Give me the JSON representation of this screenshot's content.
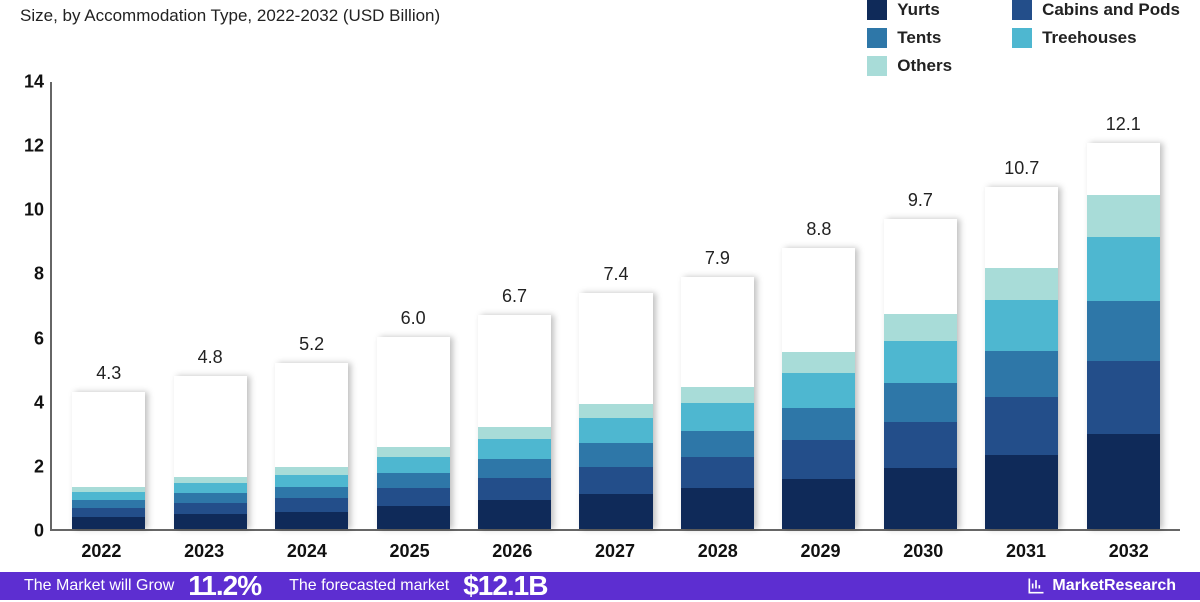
{
  "subtitle": "Size, by Accommodation Type, 2022-2032 (USD Billion)",
  "legend": {
    "items": [
      {
        "label": "Yurts",
        "color": "#0f2a59"
      },
      {
        "label": "Cabins and Pods",
        "color": "#234e8a"
      },
      {
        "label": "Tents",
        "color": "#2e77a8"
      },
      {
        "label": "Treehouses",
        "color": "#4eb7d0"
      },
      {
        "label": "Others",
        "color": "#a8dcd8"
      }
    ],
    "label_fontsize": 17
  },
  "chart": {
    "type": "stacked-bar",
    "y": {
      "min": 0,
      "max": 14,
      "step": 2,
      "label_fontsize": 18
    },
    "x_fontsize": 18,
    "bar_width_pct": 72,
    "background_color": "#ffffff",
    "segment_colors": [
      "#0f2a59",
      "#234e8a",
      "#2e77a8",
      "#4eb7d0",
      "#a8dcd8"
    ],
    "bars": [
      {
        "year": "2022",
        "total": "4.3",
        "segments": [
          1.2,
          0.95,
          0.8,
          0.85,
          0.5
        ]
      },
      {
        "year": "2023",
        "total": "4.8",
        "segments": [
          1.35,
          1.05,
          0.9,
          0.95,
          0.55
        ]
      },
      {
        "year": "2024",
        "total": "5.2",
        "segments": [
          1.45,
          1.15,
          0.95,
          1.05,
          0.6
        ]
      },
      {
        "year": "2025",
        "total": "6.0",
        "segments": [
          1.7,
          1.3,
          1.1,
          1.2,
          0.7
        ]
      },
      {
        "year": "2026",
        "total": "6.7",
        "segments": [
          1.9,
          1.45,
          1.25,
          1.3,
          0.8
        ]
      },
      {
        "year": "2027",
        "total": "7.4",
        "segments": [
          2.1,
          1.6,
          1.4,
          1.45,
          0.85
        ]
      },
      {
        "year": "2028",
        "total": "7.9",
        "segments": [
          2.25,
          1.75,
          1.45,
          1.55,
          0.9
        ]
      },
      {
        "year": "2029",
        "total": "8.8",
        "segments": [
          2.5,
          1.95,
          1.6,
          1.7,
          1.05
        ]
      },
      {
        "year": "2030",
        "total": "9.7",
        "segments": [
          2.75,
          2.1,
          1.75,
          1.9,
          1.2
        ]
      },
      {
        "year": "2031",
        "total": "10.7",
        "segments": [
          3.05,
          2.35,
          1.9,
          2.1,
          1.3
        ]
      },
      {
        "year": "2032",
        "total": "12.1",
        "segments": [
          3.45,
          2.65,
          2.15,
          2.35,
          1.5
        ]
      }
    ]
  },
  "footer": {
    "left_text": "The Market will Grow",
    "big1": "11.2%",
    "mid_text": "The forecasted market",
    "big2": "$12.1B",
    "logo_text": "MarketResearch",
    "bg_color": "#5d2ed1"
  }
}
